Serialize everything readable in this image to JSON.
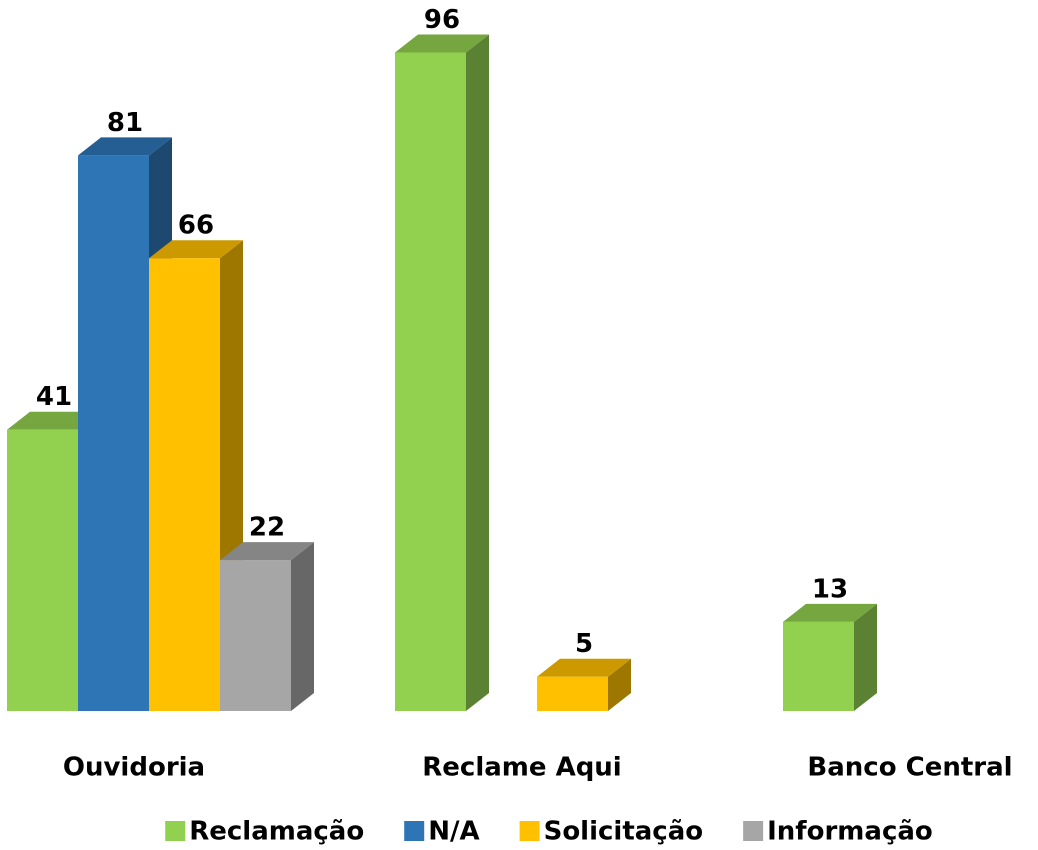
{
  "chart_data": {
    "type": "bar3d",
    "categories": [
      "Ouvidoria",
      "Reclame Aqui",
      "Banco Central"
    ],
    "series": [
      {
        "name": "Reclamação",
        "color": "#92d050",
        "values": [
          41,
          96,
          13
        ]
      },
      {
        "name": "N/A",
        "color": "#2e75b6",
        "values": [
          81,
          null,
          null
        ]
      },
      {
        "name": "Solicitação",
        "color": "#ffc000",
        "values": [
          66,
          5,
          null
        ]
      },
      {
        "name": "Informação",
        "color": "#a6a6a6",
        "values": [
          22,
          null,
          null
        ]
      }
    ],
    "ylim": [
      0,
      100
    ],
    "legend": "bottom"
  }
}
